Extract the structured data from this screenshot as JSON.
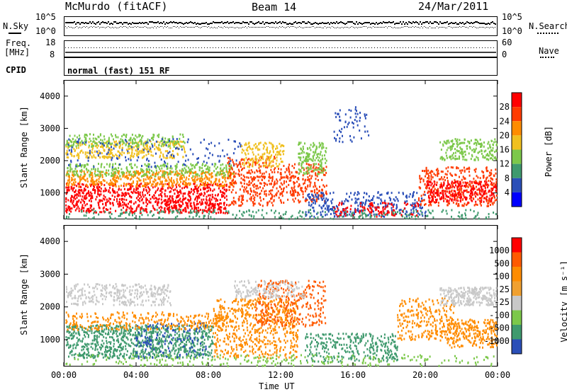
{
  "header": {
    "radar": "McMurdo (fitACF)",
    "beam": "Beam 14",
    "date": "24/Mar/2011"
  },
  "noise_panel": {
    "left_label": "N.Sky",
    "right_label": "N.Search",
    "left_ticks": [
      "10^5",
      "10^0"
    ],
    "right_ticks": [
      "10^5",
      "10^0"
    ]
  },
  "freq_panel": {
    "left_label_line1": "Freq.",
    "left_label_line2": "[MHz]",
    "right_label": "Nave",
    "left_ticks": [
      "18",
      "8"
    ],
    "right_ticks": [
      "60",
      "0"
    ]
  },
  "cpid": {
    "label": "CPID",
    "value": "normal (fast) 151 RF"
  },
  "colors": {
    "power_scale": [
      "#0000ff",
      "#2b4fb8",
      "#3f9a6e",
      "#7cc84a",
      "#f0c020",
      "#ff8c00",
      "#ff3b00",
      "#ff0000"
    ],
    "velocity_scale": [
      "#ff0000",
      "#ff5a00",
      "#ff8c00",
      "#f0a030",
      "#c8c8c8",
      "#7cc84a",
      "#3f9a6e",
      "#2b4fb8"
    ]
  },
  "chart_data": [
    {
      "type": "heatmap",
      "name": "power",
      "ylabel": "Slant Range [km]",
      "ylim": [
        180,
        4500
      ],
      "y_ticks": [
        "1000",
        "2000",
        "3000",
        "4000"
      ],
      "x_ticks": [
        "00:00",
        "04:00",
        "08:00",
        "12:00",
        "16:00",
        "20:00",
        "00:00"
      ],
      "colorbar_label": "Power [dB]",
      "colorbar_ticks": [
        "4",
        "8",
        "12",
        "16",
        "20",
        "24",
        "28"
      ],
      "colorbar_range": [
        0,
        32
      ]
    },
    {
      "type": "heatmap",
      "name": "velocity",
      "ylabel": "Slant Range [km]",
      "ylim": [
        180,
        4500
      ],
      "y_ticks": [
        "1000",
        "2000",
        "3000",
        "4000"
      ],
      "x_ticks": [
        "00:00",
        "04:00",
        "08:00",
        "12:00",
        "16:00",
        "20:00",
        "00:00"
      ],
      "xlabel": "Time UT",
      "colorbar_label": "Velocity [m s⁻¹]",
      "colorbar_ticks": [
        "1000",
        "500",
        "100",
        "25",
        "-25",
        "-100",
        "-500",
        "-1000"
      ]
    }
  ]
}
